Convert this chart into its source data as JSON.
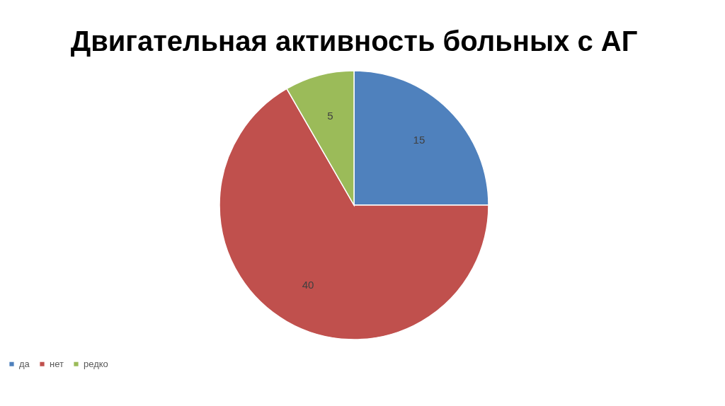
{
  "chart_data": {
    "type": "pie",
    "title": "Двигательная активность больных с АГ",
    "categories": [
      "да",
      "нет",
      "редко"
    ],
    "values": [
      15,
      40,
      5
    ],
    "colors": [
      "#4f81bd",
      "#c0504d",
      "#9bbb59"
    ],
    "data_labels": true,
    "legend": "bottom"
  }
}
